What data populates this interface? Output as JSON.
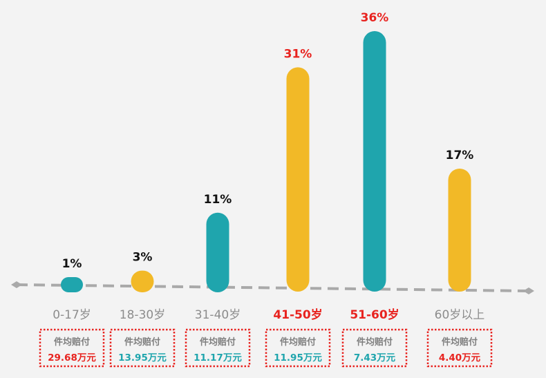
{
  "chart_data": {
    "type": "bar",
    "title": "",
    "xlabel": "",
    "ylabel": "",
    "ylim": [
      0,
      36
    ],
    "grid": false,
    "categories": [
      "0-17岁",
      "18-30岁",
      "31-40岁",
      "41-50岁",
      "51-60岁",
      "60岁以上"
    ],
    "values": [
      1,
      3,
      11,
      31,
      36,
      17
    ],
    "value_labels": [
      "1%",
      "3%",
      "11%",
      "31%",
      "36%",
      "17%"
    ],
    "bar_colors": [
      "#1fa5ad",
      "#f2b927",
      "#1fa5ad",
      "#f2b927",
      "#1fa5ad",
      "#f2b927"
    ],
    "highlighted_categories": [
      "41-50岁",
      "51-60岁"
    ],
    "box_title": "件均赔付",
    "box_values": [
      "29.68万元",
      "13.95万元",
      "11.17万元",
      "11.95万元",
      "7.43万元",
      "4.40万元"
    ],
    "box_value_colors": [
      "#e8231f",
      "#1fa5ad",
      "#1fa5ad",
      "#1fa5ad",
      "#1fa5ad",
      "#e8231f"
    ]
  },
  "colors": {
    "teal": "#1fa5ad",
    "yellow": "#f2b927",
    "highlight_red": "#e8231f",
    "axis_gray": "#a9a9a9",
    "label_gray": "#8c8c8c",
    "box_border_red": "#e8231f"
  }
}
